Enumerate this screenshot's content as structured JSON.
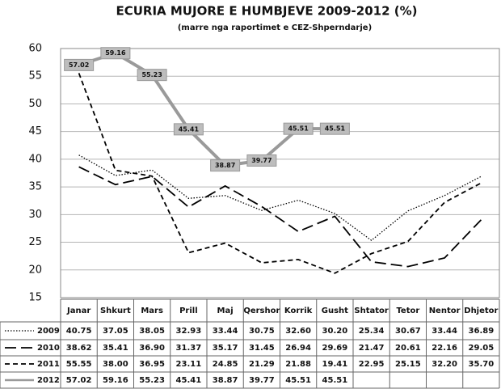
{
  "chart_data": {
    "type": "line",
    "title": "ECURIA MUJORE E HUMBJEVE 2009-2012 (%)",
    "subtitle": "(marre nga raportimet e CEZ-Shperndarje)",
    "categories": [
      "Janar",
      "Shkurt",
      "Mars",
      "Prill",
      "Maj",
      "Qershor",
      "Korrik",
      "Gusht",
      "Shtator",
      "Tetor",
      "Nentor",
      "Dhjetor"
    ],
    "series": [
      {
        "name": "2009",
        "color": "#000000",
        "style": "dotted",
        "values": [
          40.75,
          37.05,
          38.05,
          32.93,
          33.44,
          30.75,
          32.6,
          30.2,
          25.34,
          30.67,
          33.44,
          36.89
        ],
        "value_labels": [
          "40.75",
          "37.05",
          "38.05",
          "32.93",
          "33.44",
          "30.75",
          "32.60",
          "30.20",
          "25.34",
          "30.67",
          "33.44",
          "36.89"
        ]
      },
      {
        "name": "2010",
        "color": "#000000",
        "style": "long-dash",
        "values": [
          38.62,
          35.41,
          36.9,
          31.37,
          35.17,
          31.45,
          26.94,
          29.69,
          21.47,
          20.61,
          22.16,
          29.05
        ],
        "value_labels": [
          "38.62",
          "35.41",
          "36.90",
          "31.37",
          "35.17",
          "31.45",
          "26.94",
          "29.69",
          "21.47",
          "20.61",
          "22.16",
          "29.05"
        ]
      },
      {
        "name": "2011",
        "color": "#000000",
        "style": "dashed",
        "values": [
          55.55,
          38.0,
          36.95,
          23.11,
          24.85,
          21.29,
          21.88,
          19.41,
          22.95,
          25.15,
          32.2,
          35.7
        ],
        "value_labels": [
          "55.55",
          "38.00",
          "36.95",
          "23.11",
          "24.85",
          "21.29",
          "21.88",
          "19.41",
          "22.95",
          "25.15",
          "32.20",
          "35.70"
        ]
      },
      {
        "name": "2012",
        "color": "#9a9a9a",
        "style": "solid",
        "point_labels": true,
        "values": [
          57.02,
          59.16,
          55.23,
          45.41,
          38.87,
          39.77,
          45.51,
          45.51,
          null,
          null,
          null,
          null
        ],
        "value_labels": [
          "57.02",
          "59.16",
          "55.23",
          "45.41",
          "38.87",
          "39.77",
          "45.51",
          "45.51",
          null,
          null,
          null,
          null
        ]
      }
    ],
    "ylim": [
      15,
      60
    ],
    "yticks": [
      15,
      20,
      25,
      30,
      35,
      40,
      45,
      50,
      55,
      60
    ],
    "grid": true
  }
}
